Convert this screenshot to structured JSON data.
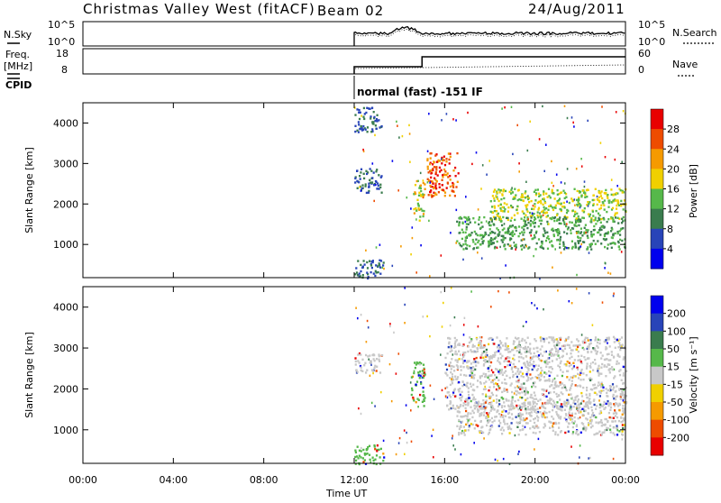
{
  "header": {
    "station": "Christmas Valley West (fitACF)",
    "beam": "Beam 02",
    "date": "24/Aug/2011"
  },
  "nsky_panel": {
    "left_label": "N.Sky",
    "left_ticks": [
      "10^5",
      "10^0"
    ],
    "right_label": "N.Search",
    "right_ticks": [
      "10^5",
      "10^0"
    ]
  },
  "freq_panel": {
    "left_label_line1": "Freq.",
    "left_label_line2": "[MHz]",
    "left_ticks": [
      "18",
      "8"
    ],
    "right_label": "Nave",
    "right_ticks": [
      "60",
      "0"
    ]
  },
  "cpid": {
    "label": "CPID",
    "text": "normal (fast) -151 IF"
  },
  "x_axis": {
    "ticks": [
      "00:00",
      "04:00",
      "08:00",
      "12:00",
      "16:00",
      "20:00",
      "00:00"
    ],
    "label": "Time UT"
  },
  "colors": {
    "power_scale": [
      "#0000ee",
      "#2844b8",
      "#3a7c4e",
      "#56b84a",
      "#f0d000",
      "#f59a00",
      "#ee4c00",
      "#e80000"
    ],
    "velocity_scale": [
      "#0000ee",
      "#2844b8",
      "#3a7c4e",
      "#56b84a",
      "#c8c8c8",
      "#f0d000",
      "#f59a00",
      "#ee4c00",
      "#e80000"
    ]
  },
  "chart_data": [
    {
      "type": "heatmap",
      "title": "",
      "xlabel": "",
      "ylabel": "Slant Range [km]",
      "y_ticks": [
        "1000",
        "2000",
        "3000",
        "4000"
      ],
      "xlim_hours": [
        0,
        24
      ],
      "ylim_km": [
        180,
        4500
      ],
      "colorbar_label": "Power [dB]",
      "colorbar_ticks": [
        "4",
        "8",
        "12",
        "16",
        "20",
        "24",
        "28"
      ],
      "data_coverage_hours": [
        12,
        24
      ],
      "echo_regions": [
        {
          "hours": [
            12.0,
            13.3
          ],
          "km": [
            180,
            650
          ],
          "level": "8 dB"
        },
        {
          "hours": [
            12.0,
            13.2
          ],
          "km": [
            3800,
            4400
          ],
          "level": "8 dB"
        },
        {
          "hours": [
            12.0,
            13.2
          ],
          "km": [
            2300,
            2900
          ],
          "level": "8 dB"
        },
        {
          "hours": [
            14.6,
            15.1
          ],
          "km": [
            1600,
            2600
          ],
          "level": "12-24 dB"
        },
        {
          "hours": [
            15.2,
            16.6
          ],
          "km": [
            2200,
            3300
          ],
          "level": "16-24 dB"
        },
        {
          "hours": [
            18.0,
            24.0
          ],
          "km": [
            1600,
            2400
          ],
          "level": "20-28 dB"
        },
        {
          "hours": [
            16.5,
            24.0
          ],
          "km": [
            900,
            1700
          ],
          "level": "8-16 dB"
        }
      ]
    },
    {
      "type": "heatmap",
      "title": "",
      "xlabel": "Time UT",
      "ylabel": "Slant Range [km]",
      "y_ticks": [
        "1000",
        "2000",
        "3000",
        "4000"
      ],
      "xlim_hours": [
        0,
        24
      ],
      "ylim_km": [
        180,
        4500
      ],
      "colorbar_label": "Velocity [m s⁻¹]",
      "colorbar_ticks": [
        "200",
        "100",
        "50",
        "15",
        "-15",
        "-50",
        "-100",
        "-200"
      ],
      "data_coverage_hours": [
        12,
        24
      ],
      "echo_regions": [
        {
          "hours": [
            12.0,
            13.3
          ],
          "km": [
            180,
            650
          ],
          "level": "15 to 50 m/s"
        },
        {
          "hours": [
            12.0,
            13.2
          ],
          "km": [
            2400,
            2900
          ],
          "level": "-15 to 15 m/s"
        },
        {
          "hours": [
            14.5,
            15.1
          ],
          "km": [
            1600,
            2700
          ],
          "level": "15 to 50 m/s"
        },
        {
          "hours": [
            16.0,
            24.0
          ],
          "km": [
            1500,
            3300
          ],
          "level": "-15 to 15 m/s"
        },
        {
          "hours": [
            16.5,
            24.0
          ],
          "km": [
            900,
            1700
          ],
          "level": "-15 to 15 m/s"
        }
      ]
    }
  ]
}
